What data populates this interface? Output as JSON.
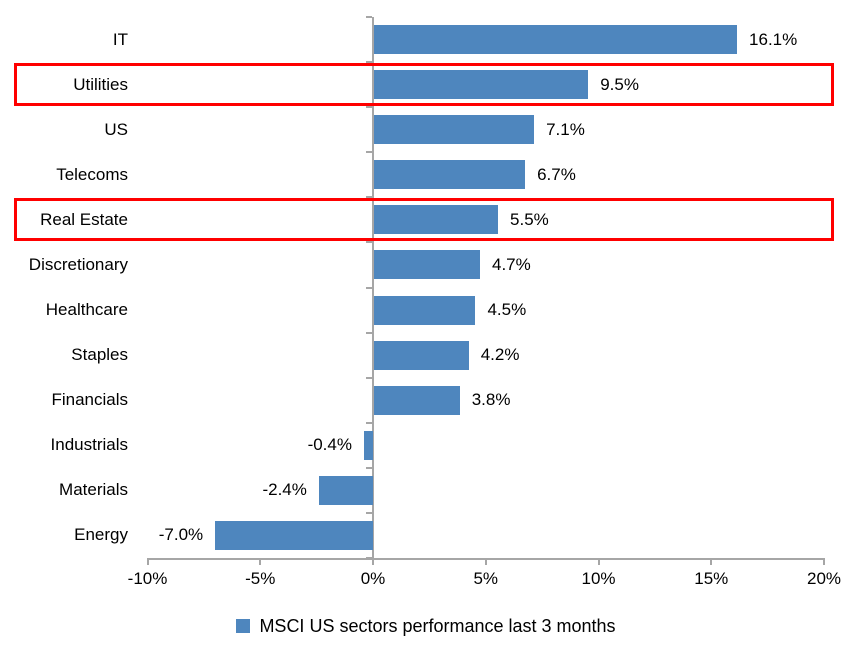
{
  "chart_data": {
    "type": "bar",
    "orientation": "horizontal",
    "title": "",
    "categories": [
      "IT",
      "Utilities",
      "US",
      "Telecoms",
      "Real Estate",
      "Discretionary",
      "Healthcare",
      "Staples",
      "Financials",
      "Industrials",
      "Materials",
      "Energy"
    ],
    "values": [
      16.1,
      9.5,
      7.1,
      6.7,
      5.5,
      4.7,
      4.5,
      4.2,
      3.8,
      -0.4,
      -2.4,
      -7.0
    ],
    "data_labels": [
      "16.1%",
      "9.5%",
      "7.1%",
      "6.7%",
      "5.5%",
      "4.7%",
      "4.5%",
      "4.2%",
      "3.8%",
      "-0.4%",
      "-2.4%",
      "-7.0%"
    ],
    "x_axis": {
      "min": -10,
      "max": 20,
      "tick_values": [
        -10,
        -5,
        0,
        5,
        10,
        15,
        20
      ],
      "tick_labels": [
        "-10%",
        "-5%",
        "0%",
        "5%",
        "10%",
        "15%",
        "20%"
      ]
    },
    "grid": "off",
    "legend": {
      "position": "bottom",
      "label": "MSCI US sectors performance last 3 months"
    },
    "highlighted_categories": [
      "Utilities",
      "Real Estate"
    ],
    "colors": {
      "bar": "#4e86be",
      "highlight_box": "#ff0000",
      "axis": "#a6a6a6",
      "text": "#000000"
    }
  }
}
